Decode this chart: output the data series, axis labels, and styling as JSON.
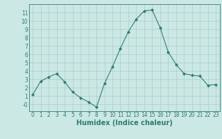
{
  "x": [
    0,
    1,
    2,
    3,
    4,
    5,
    6,
    7,
    8,
    9,
    10,
    11,
    12,
    13,
    14,
    15,
    16,
    17,
    18,
    19,
    20,
    21,
    22,
    23
  ],
  "y": [
    1.2,
    2.8,
    3.3,
    3.7,
    2.7,
    1.5,
    0.8,
    0.3,
    -0.3,
    2.5,
    4.5,
    6.7,
    8.7,
    10.2,
    11.2,
    11.3,
    9.2,
    6.3,
    4.8,
    3.7,
    3.5,
    3.4,
    2.3,
    2.4
  ],
  "line_color": "#2d7d6e",
  "marker": "D",
  "marker_size": 2.0,
  "bg_color": "#cce8e4",
  "grid_color": "#aaccca",
  "xlabel": "Humidex (Indice chaleur)",
  "ylim": [
    -0.8,
    12.0
  ],
  "xlim": [
    -0.5,
    23.5
  ],
  "yticks": [
    0,
    1,
    2,
    3,
    4,
    5,
    6,
    7,
    8,
    9,
    10,
    11
  ],
  "ytick_labels": [
    "-0",
    "1",
    "2",
    "3",
    "4",
    "5",
    "6",
    "7",
    "8",
    "9",
    "10",
    "11"
  ],
  "xticks": [
    0,
    1,
    2,
    3,
    4,
    5,
    6,
    7,
    8,
    9,
    10,
    11,
    12,
    13,
    14,
    15,
    16,
    17,
    18,
    19,
    20,
    21,
    22,
    23
  ],
  "tick_fontsize": 5.5,
  "xlabel_fontsize": 7.0,
  "axis_color": "#2d7d6e",
  "linewidth": 0.8
}
